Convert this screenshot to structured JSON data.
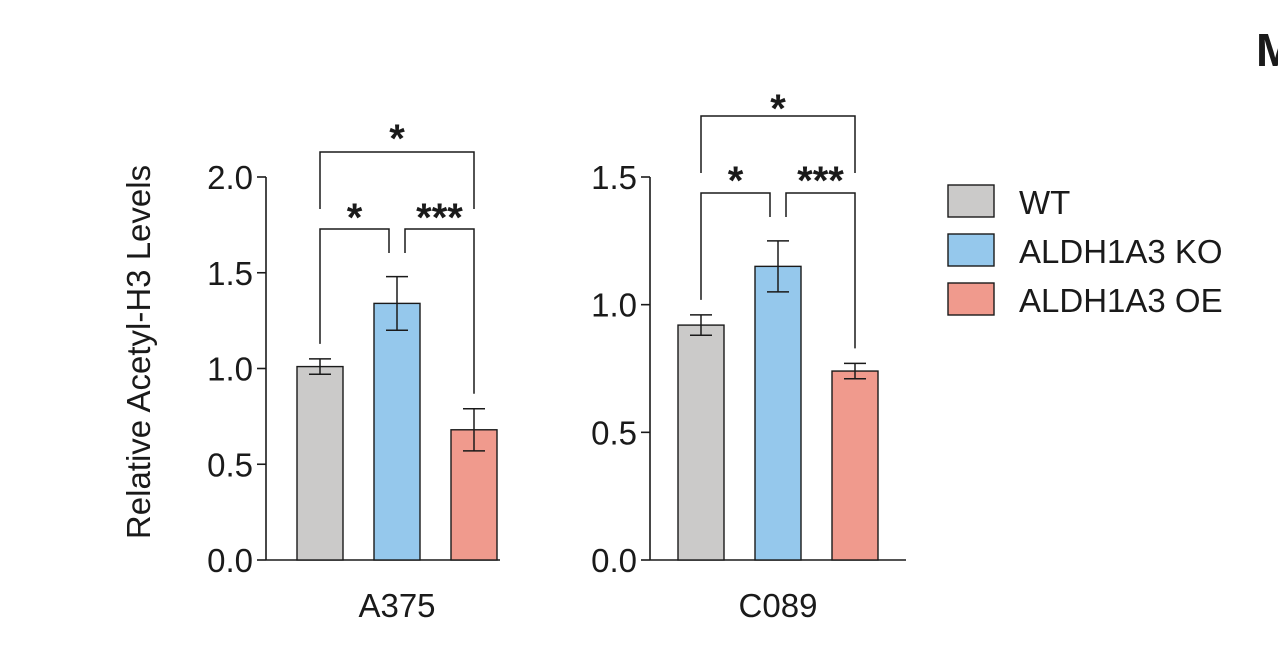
{
  "panel_letter": "M",
  "ylabel": "Relative Acetyl-H3 Levels",
  "legend": [
    {
      "label": "WT",
      "color": "#cbcac9"
    },
    {
      "label": "ALDH1A3 KO",
      "color": "#95c8ec"
    },
    {
      "label": "ALDH1A3 OE",
      "color": "#f09a8d"
    }
  ],
  "chart_data": [
    {
      "type": "bar",
      "xlabel": "A375",
      "ylabel": "Relative Acetyl-H3 Levels",
      "categories": [
        "WT",
        "ALDH1A3 KO",
        "ALDH1A3 OE"
      ],
      "values": [
        1.01,
        1.34,
        0.68
      ],
      "errors": [
        0.04,
        0.14,
        0.11
      ],
      "ylim": [
        0,
        2.0
      ],
      "yticks": [
        0.0,
        0.5,
        1.0,
        1.5,
        2.0
      ],
      "ytick_labels": [
        "0.0",
        "0.5",
        "1.0",
        "1.5",
        "2.0"
      ],
      "significance": [
        {
          "from": 0,
          "to": 1,
          "label": "*"
        },
        {
          "from": 1,
          "to": 2,
          "label": "***"
        },
        {
          "from": 0,
          "to": 2,
          "label": "*"
        }
      ]
    },
    {
      "type": "bar",
      "xlabel": "C089",
      "categories": [
        "WT",
        "ALDH1A3 KO",
        "ALDH1A3 OE"
      ],
      "values": [
        0.92,
        1.15,
        0.74
      ],
      "errors": [
        0.04,
        0.1,
        0.03
      ],
      "ylim": [
        0,
        1.5
      ],
      "yticks": [
        0.0,
        0.5,
        1.0,
        1.5
      ],
      "ytick_labels": [
        "0.0",
        "0.5",
        "1.0",
        "1.5"
      ],
      "significance": [
        {
          "from": 0,
          "to": 1,
          "label": "*"
        },
        {
          "from": 1,
          "to": 2,
          "label": "***"
        },
        {
          "from": 0,
          "to": 2,
          "label": "*"
        }
      ]
    }
  ]
}
